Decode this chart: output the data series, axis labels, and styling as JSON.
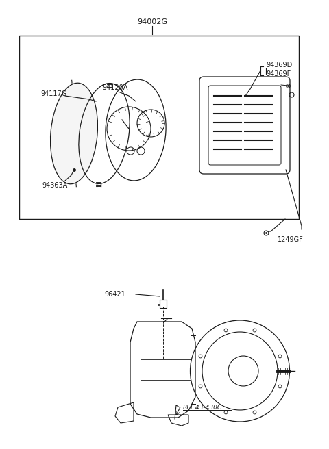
{
  "bg_color": "#ffffff",
  "line_color": "#1a1a1a",
  "title_top": "94002G",
  "label_94117G": "94117G",
  "label_94120A": "94120A",
  "label_94363A": "94363A",
  "label_94369D": "94369D",
  "label_94369F": "94369F",
  "label_1249GF": "1249GF",
  "label_96421": "96421",
  "label_ref": "REF.43-430C",
  "font_size_label": 7.0,
  "font_size_title": 8.0
}
